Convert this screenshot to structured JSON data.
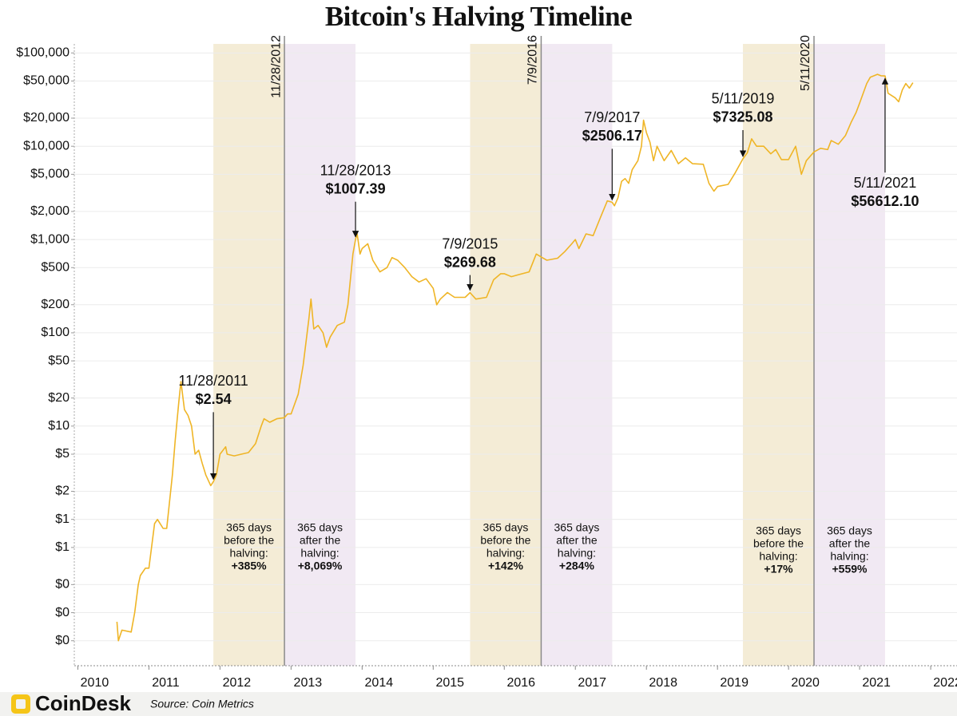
{
  "chart_data": {
    "type": "line",
    "title": "Bitcoin's Halving Timeline",
    "brand": "CoinDesk",
    "source": "Source: Coin Metrics",
    "color": "#efb526",
    "log_scale": true,
    "grid": true,
    "xlim": [
      2009.95,
      2022.37
    ],
    "xticks": [
      2010,
      2011,
      2012,
      2013,
      2014,
      2015,
      2016,
      2017,
      2018,
      2019,
      2020,
      2021,
      2022
    ],
    "ylim": [
      0.027,
      125000
    ],
    "yticks": [
      {
        "value": 100000,
        "label": "$100,000"
      },
      {
        "value": 50000,
        "label": "$50,000"
      },
      {
        "value": 20000,
        "label": "$20,000"
      },
      {
        "value": 10000,
        "label": "$10,000"
      },
      {
        "value": 5000,
        "label": "$5,000"
      },
      {
        "value": 2000,
        "label": "$2,000"
      },
      {
        "value": 1000,
        "label": "$1,000"
      },
      {
        "value": 500,
        "label": "$500"
      },
      {
        "value": 200,
        "label": "$200"
      },
      {
        "value": 100,
        "label": "$100"
      },
      {
        "value": 50,
        "label": "$50"
      },
      {
        "value": 20,
        "label": "$20"
      },
      {
        "value": 10,
        "label": "$10"
      },
      {
        "value": 5,
        "label": "$5"
      },
      {
        "value": 2,
        "label": "$2"
      },
      {
        "value": 1,
        "label": "$1"
      },
      {
        "value": 0.5,
        "label": "$1"
      },
      {
        "value": 0.2,
        "label": "$0"
      },
      {
        "value": 0.1,
        "label": "$0"
      },
      {
        "value": 0.05,
        "label": "$0"
      }
    ],
    "x": [
      2010.55,
      2010.57,
      2010.62,
      2010.75,
      2010.8,
      2010.85,
      2010.88,
      2010.95,
      2011.0,
      2011.08,
      2011.12,
      2011.2,
      2011.25,
      2011.33,
      2011.37,
      2011.42,
      2011.45,
      2011.5,
      2011.55,
      2011.6,
      2011.65,
      2011.7,
      2011.75,
      2011.8,
      2011.87,
      2011.907,
      2011.95,
      2012.0,
      2012.08,
      2012.1,
      2012.2,
      2012.3,
      2012.4,
      2012.5,
      2012.58,
      2012.62,
      2012.7,
      2012.8,
      2012.907,
      2012.95,
      2013.0,
      2013.1,
      2013.17,
      2013.25,
      2013.28,
      2013.32,
      2013.38,
      2013.45,
      2013.5,
      2013.55,
      2013.65,
      2013.75,
      2013.8,
      2013.87,
      2013.907,
      2013.93,
      2013.97,
      2014.0,
      2014.08,
      2014.15,
      2014.25,
      2014.35,
      2014.42,
      2014.5,
      2014.6,
      2014.7,
      2014.8,
      2014.9,
      2015.0,
      2015.05,
      2015.1,
      2015.2,
      2015.3,
      2015.45,
      2015.518,
      2015.6,
      2015.75,
      2015.85,
      2015.95,
      2016.0,
      2016.1,
      2016.2,
      2016.35,
      2016.45,
      2016.519,
      2016.6,
      2016.75,
      2016.85,
      2016.95,
      2017.0,
      2017.05,
      2017.15,
      2017.25,
      2017.35,
      2017.45,
      2017.518,
      2017.55,
      2017.6,
      2017.65,
      2017.7,
      2017.75,
      2017.8,
      2017.88,
      2017.93,
      2017.96,
      2018.0,
      2018.05,
      2018.1,
      2018.15,
      2018.25,
      2018.35,
      2018.45,
      2018.55,
      2018.65,
      2018.8,
      2018.88,
      2018.95,
      2019.0,
      2019.15,
      2019.25,
      2019.358,
      2019.42,
      2019.48,
      2019.55,
      2019.65,
      2019.75,
      2019.82,
      2019.9,
      2020.0,
      2020.1,
      2020.18,
      2020.25,
      2020.358,
      2020.45,
      2020.55,
      2020.6,
      2020.7,
      2020.8,
      2020.88,
      2020.95,
      2021.0,
      2021.1,
      2021.15,
      2021.25,
      2021.3,
      2021.358,
      2021.4,
      2021.5,
      2021.55,
      2021.6,
      2021.65,
      2021.7,
      2021.75
    ],
    "values": [
      0.08,
      0.05,
      0.065,
      0.062,
      0.1,
      0.2,
      0.25,
      0.3,
      0.3,
      0.9,
      1.0,
      0.8,
      0.8,
      3,
      7,
      18,
      30,
      15,
      13,
      10,
      5,
      5.5,
      4,
      3,
      2.3,
      2.54,
      3.0,
      5,
      6,
      5,
      4.8,
      5,
      5.2,
      6.5,
      10,
      12,
      11,
      12,
      12.3,
      13.5,
      13.5,
      22,
      45,
      140,
      230,
      110,
      120,
      100,
      70,
      90,
      120,
      130,
      200,
      700,
      1007.39,
      1150,
      700,
      800,
      900,
      600,
      450,
      500,
      640,
      600,
      500,
      400,
      350,
      380,
      300,
      200,
      230,
      270,
      240,
      240,
      269.68,
      230,
      240,
      370,
      430,
      430,
      400,
      420,
      450,
      700,
      650,
      600,
      630,
      740,
      900,
      1000,
      800,
      1150,
      1100,
      1700,
      2600,
      2506.17,
      2300,
      2800,
      4200,
      4500,
      4000,
      5600,
      7000,
      10000,
      19000,
      14000,
      11000,
      7000,
      10000,
      7000,
      9000,
      6500,
      7500,
      6500,
      6400,
      4000,
      3300,
      3700,
      3900,
      5200,
      7325.08,
      8500,
      12000,
      10000,
      10000,
      8300,
      9200,
      7200,
      7200,
      10000,
      5000,
      7000,
      8700,
      9500,
      9200,
      11500,
      10500,
      13000,
      18000,
      23000,
      29000,
      47000,
      55000,
      59000,
      57000,
      56612.1,
      37000,
      33000,
      30000,
      40000,
      47000,
      42000,
      48000
    ],
    "halvings": [
      {
        "x": 2012.907,
        "label": "11/28/2012"
      },
      {
        "x": 2016.519,
        "label": "7/9/2016"
      },
      {
        "x": 2020.358,
        "label": "5/11/2020"
      }
    ],
    "bands": [
      {
        "x0": 2011.907,
        "x1": 2012.907,
        "color": "#f4ecd6",
        "lines": [
          "365 days",
          "before the",
          "halving:"
        ],
        "change": "+385%"
      },
      {
        "x0": 2012.907,
        "x1": 2013.907,
        "color": "#f1e9f3",
        "lines": [
          "365 days",
          "after the",
          "halving:"
        ],
        "change": "+8,069%"
      },
      {
        "x0": 2015.519,
        "x1": 2016.519,
        "color": "#f4ecd6",
        "lines": [
          "365 days",
          "before the",
          "halving:"
        ],
        "change": "+142%"
      },
      {
        "x0": 2016.519,
        "x1": 2017.519,
        "color": "#f1e9f3",
        "lines": [
          "365 days",
          "after the",
          "halving:"
        ],
        "change": "+284%"
      },
      {
        "x0": 2019.358,
        "x1": 2020.358,
        "color": "#f4ecd6",
        "lines": [
          "365 days",
          "before the",
          "halving:"
        ],
        "change": "+17%"
      },
      {
        "x0": 2020.358,
        "x1": 2021.358,
        "color": "#f1e9f3",
        "lines": [
          "365 days",
          "after the",
          "halving:"
        ],
        "change": "+559%"
      }
    ],
    "annotations": [
      {
        "x": 2011.907,
        "value": 2.54,
        "date": "11/28/2011",
        "label": "$2.54"
      },
      {
        "x": 2013.907,
        "value": 1007.39,
        "date": "11/28/2013",
        "label": "$1007.39"
      },
      {
        "x": 2015.518,
        "value": 269.68,
        "date": "7/9/2015",
        "label": "$269.68"
      },
      {
        "x": 2017.518,
        "value": 2506.17,
        "date": "7/9/2017",
        "label": "$2506.17"
      },
      {
        "x": 2019.358,
        "value": 7325.08,
        "date": "5/11/2019",
        "label": "$7325.08"
      },
      {
        "x": 2021.358,
        "value": 56612.1,
        "date": "5/11/2021",
        "label": "$56612.10"
      }
    ]
  }
}
